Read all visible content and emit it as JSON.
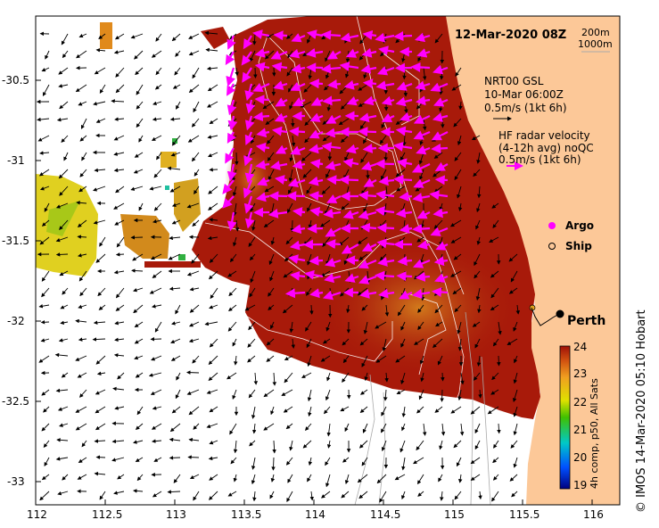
{
  "title": "12-Mar-2020 08Z",
  "depth_labels": [
    "200m",
    "1000m"
  ],
  "model_legend": {
    "line1": "NRT00 GSL",
    "line2": "10-Mar 06:00Z",
    "line3": "0.5m/s (1kt 6h)"
  },
  "radar_legend": {
    "line1": "HF radar velocity",
    "line2": "(4-12h avg) noQC",
    "line3": "0.5m/s (1kt 6h)"
  },
  "markers": {
    "argo": "Argo",
    "ship": "Ship"
  },
  "city": "Perth",
  "y_ticks": [
    "-30.5",
    "-31",
    "-31.5",
    "-32",
    "-32.5",
    "-33"
  ],
  "x_ticks": [
    "112",
    "112.5",
    "113",
    "113.5",
    "114",
    "114.5",
    "115",
    "115.5",
    "116"
  ],
  "colorbar": {
    "ticks": [
      "24",
      "23",
      "22",
      "21",
      "20",
      "19"
    ],
    "label": "4h comp, p50, All Sats"
  },
  "credit": "© IMOS 14-Mar-2020 05:10 Hobart",
  "colors": {
    "sst_warm": "#a81a0a",
    "sst_mid": "#c86414",
    "land": "#fcc898",
    "radar_arrow": "#ff00ff",
    "model_arrow": "#000000"
  }
}
